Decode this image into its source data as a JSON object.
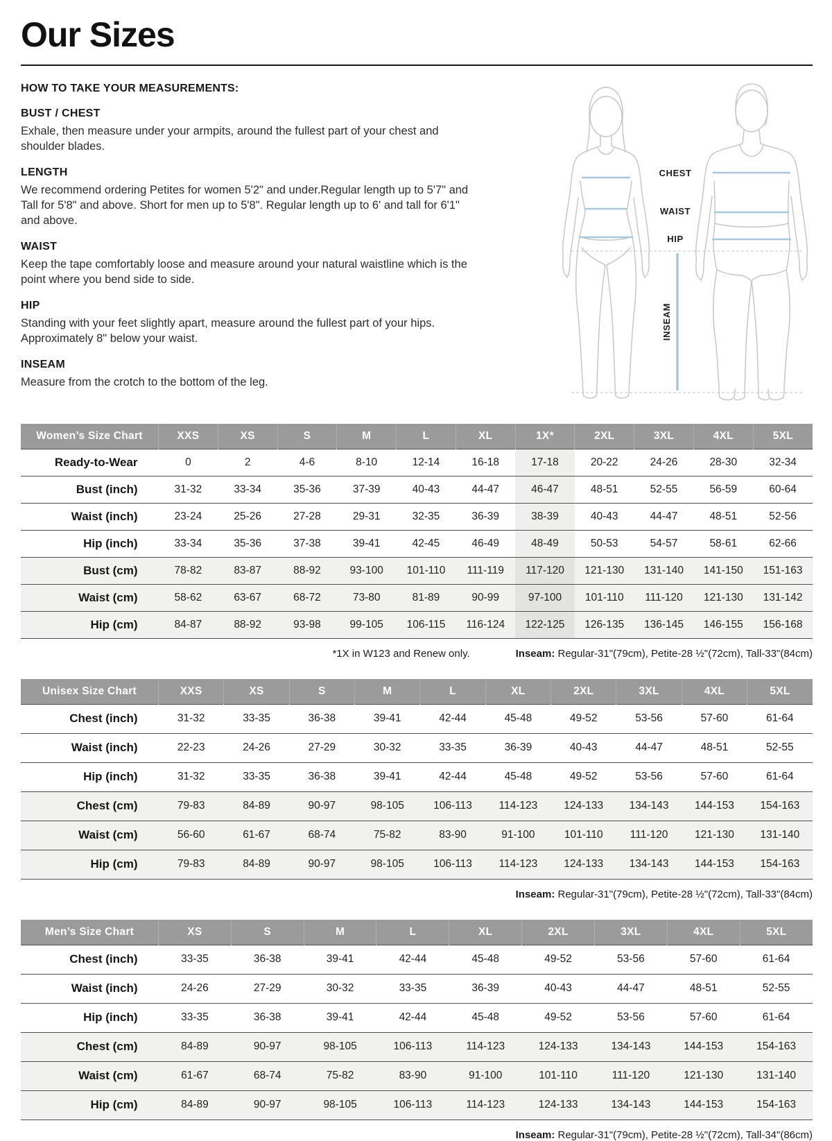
{
  "page": {
    "title": "Our Sizes",
    "how_to_heading": "HOW TO TAKE YOUR MEASUREMENTS:",
    "sections": [
      {
        "heading": "BUST / CHEST",
        "body": "Exhale, then measure under your armpits, around the fullest part of your chest and shoulder blades."
      },
      {
        "heading": "LENGTH",
        "body": "We recommend ordering Petites for women 5'2\" and under.Regular length up to 5'7\" and Tall for 5'8\" and above. Short for men up to 5'8\". Regular length up to 6' and tall for 6'1\" and above."
      },
      {
        "heading": "WAIST",
        "body": "Keep the tape comfortably loose and measure around your natural waistline which is the point where you bend side to side."
      },
      {
        "heading": "HIP",
        "body": "Standing with your feet slightly apart, measure around the fullest part of your hips. Approximately 8\" below your waist."
      },
      {
        "heading": "INSEAM",
        "body": "Measure from the crotch to the bottom of the leg."
      }
    ]
  },
  "diagram": {
    "labels": {
      "chest": "CHEST",
      "waist": "WAIST",
      "hip": "HIP",
      "inseam": "INSEAM"
    },
    "line_color": "#a9c7d9",
    "figure_color": "#c7c7c7"
  },
  "tables": [
    {
      "title": "Women’s Size Chart",
      "columns": [
        "XXS",
        "XS",
        "S",
        "M",
        "L",
        "XL",
        "1X*",
        "2XL",
        "3XL",
        "4XL",
        "5XL"
      ],
      "highlight_col": 6,
      "rows": [
        {
          "label": "Ready-to-Wear",
          "shaded": false,
          "values": [
            "0",
            "2",
            "4-6",
            "8-10",
            "12-14",
            "16-18",
            "17-18",
            "20-22",
            "24-26",
            "28-30",
            "32-34"
          ]
        },
        {
          "label": "Bust (inch)",
          "shaded": false,
          "values": [
            "31-32",
            "33-34",
            "35-36",
            "37-39",
            "40-43",
            "44-47",
            "46-47",
            "48-51",
            "52-55",
            "56-59",
            "60-64"
          ]
        },
        {
          "label": "Waist (inch)",
          "shaded": false,
          "values": [
            "23-24",
            "25-26",
            "27-28",
            "29-31",
            "32-35",
            "36-39",
            "38-39",
            "40-43",
            "44-47",
            "48-51",
            "52-56"
          ]
        },
        {
          "label": "Hip (inch)",
          "shaded": false,
          "values": [
            "33-34",
            "35-36",
            "37-38",
            "39-41",
            "42-45",
            "46-49",
            "48-49",
            "50-53",
            "54-57",
            "58-61",
            "62-66"
          ]
        },
        {
          "label": "Bust (cm)",
          "shaded": true,
          "values": [
            "78-82",
            "83-87",
            "88-92",
            "93-100",
            "101-110",
            "111-119",
            "117-120",
            "121-130",
            "131-140",
            "141-150",
            "151-163"
          ]
        },
        {
          "label": "Waist (cm)",
          "shaded": true,
          "values": [
            "58-62",
            "63-67",
            "68-72",
            "73-80",
            "81-89",
            "90-99",
            "97-100",
            "101-110",
            "111-120",
            "121-130",
            "131-142"
          ]
        },
        {
          "label": "Hip (cm)",
          "shaded": true,
          "values": [
            "84-87",
            "88-92",
            "93-98",
            "99-105",
            "106-115",
            "116-124",
            "122-125",
            "126-135",
            "136-145",
            "146-155",
            "156-168"
          ]
        }
      ],
      "footnote_left": "*1X in W123 and Renew only.",
      "inseam_label": "Inseam:",
      "inseam_text": " Regular-31\"(79cm), Petite-28 ½\"(72cm), Tall-33\"(84cm)"
    },
    {
      "title": "Unisex Size Chart",
      "columns": [
        "XXS",
        "XS",
        "S",
        "M",
        "L",
        "XL",
        "2XL",
        "3XL",
        "4XL",
        "5XL"
      ],
      "highlight_col": -1,
      "rows": [
        {
          "label": "Chest (inch)",
          "shaded": false,
          "values": [
            "31-32",
            "33-35",
            "36-38",
            "39-41",
            "42-44",
            "45-48",
            "49-52",
            "53-56",
            "57-60",
            "61-64"
          ]
        },
        {
          "label": "Waist (inch)",
          "shaded": false,
          "values": [
            "22-23",
            "24-26",
            "27-29",
            "30-32",
            "33-35",
            "36-39",
            "40-43",
            "44-47",
            "48-51",
            "52-55"
          ]
        },
        {
          "label": "Hip (inch)",
          "shaded": false,
          "values": [
            "31-32",
            "33-35",
            "36-38",
            "39-41",
            "42-44",
            "45-48",
            "49-52",
            "53-56",
            "57-60",
            "61-64"
          ]
        },
        {
          "label": "Chest (cm)",
          "shaded": true,
          "values": [
            "79-83",
            "84-89",
            "90-97",
            "98-105",
            "106-113",
            "114-123",
            "124-133",
            "134-143",
            "144-153",
            "154-163"
          ]
        },
        {
          "label": "Waist (cm)",
          "shaded": true,
          "values": [
            "56-60",
            "61-67",
            "68-74",
            "75-82",
            "83-90",
            "91-100",
            "101-110",
            "111-120",
            "121-130",
            "131-140"
          ]
        },
        {
          "label": "Hip (cm)",
          "shaded": true,
          "values": [
            "79-83",
            "84-89",
            "90-97",
            "98-105",
            "106-113",
            "114-123",
            "124-133",
            "134-143",
            "144-153",
            "154-163"
          ]
        }
      ],
      "footnote_left": "",
      "inseam_label": "Inseam:",
      "inseam_text": " Regular-31\"(79cm), Petite-28 ½\"(72cm), Tall-33\"(84cm)"
    },
    {
      "title": "Men’s Size Chart",
      "columns": [
        "XS",
        "S",
        "M",
        "L",
        "XL",
        "2XL",
        "3XL",
        "4XL",
        "5XL"
      ],
      "highlight_col": -1,
      "rows": [
        {
          "label": "Chest (inch)",
          "shaded": false,
          "values": [
            "33-35",
            "36-38",
            "39-41",
            "42-44",
            "45-48",
            "49-52",
            "53-56",
            "57-60",
            "61-64"
          ]
        },
        {
          "label": "Waist (inch)",
          "shaded": false,
          "values": [
            "24-26",
            "27-29",
            "30-32",
            "33-35",
            "36-39",
            "40-43",
            "44-47",
            "48-51",
            "52-55"
          ]
        },
        {
          "label": "Hip (inch)",
          "shaded": false,
          "values": [
            "33-35",
            "36-38",
            "39-41",
            "42-44",
            "45-48",
            "49-52",
            "53-56",
            "57-60",
            "61-64"
          ]
        },
        {
          "label": "Chest (cm)",
          "shaded": true,
          "values": [
            "84-89",
            "90-97",
            "98-105",
            "106-113",
            "114-123",
            "124-133",
            "134-143",
            "144-153",
            "154-163"
          ]
        },
        {
          "label": "Waist (cm)",
          "shaded": true,
          "values": [
            "61-67",
            "68-74",
            "75-82",
            "83-90",
            "91-100",
            "101-110",
            "111-120",
            "121-130",
            "131-140"
          ]
        },
        {
          "label": "Hip (cm)",
          "shaded": true,
          "values": [
            "84-89",
            "90-97",
            "98-105",
            "106-113",
            "114-123",
            "124-133",
            "134-143",
            "144-153",
            "154-163"
          ]
        }
      ],
      "footnote_left": "",
      "inseam_label": "Inseam:",
      "inseam_text": " Regular-31\"(79cm), Petite-28 ½\"(72cm), Tall-34\"(86cm)"
    }
  ]
}
